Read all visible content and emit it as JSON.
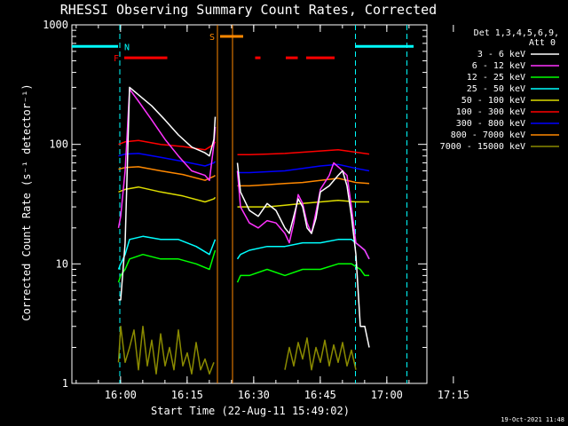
{
  "chart_data": {
    "type": "line",
    "title": "RHESSI Observing Summary Count Rates, Corrected",
    "xlabel": "Start Time (22-Aug-11 15:49:02)",
    "ylabel": "Corrected Count Rate (s⁻¹ detector⁻¹)",
    "yscale": "log",
    "ylim": [
      1,
      1000
    ],
    "xlim_minutes_from_start": [
      0,
      80
    ],
    "x_ticks": [
      {
        "label": "16:00",
        "minute": 10.97
      },
      {
        "label": "16:15",
        "minute": 25.97
      },
      {
        "label": "16:30",
        "minute": 40.97
      },
      {
        "label": "16:45",
        "minute": 55.97
      },
      {
        "label": "17:00",
        "minute": 70.97
      },
      {
        "label": "17:15",
        "minute": 85.97
      }
    ],
    "y_ticks": [
      {
        "label": "1",
        "value": 1
      },
      {
        "label": "10",
        "value": 10
      },
      {
        "label": "100",
        "value": 100
      },
      {
        "label": "1000",
        "value": 1000
      }
    ],
    "header": {
      "detectors": "Det 1,3,4,5,6,9,",
      "attenuator": "Att 0"
    },
    "series": [
      {
        "name": "3 - 6 keV",
        "color": "#ffffff",
        "points": [
          [
            10.5,
            5
          ],
          [
            11,
            5
          ],
          [
            12,
            15
          ],
          [
            13,
            300
          ],
          [
            15,
            260
          ],
          [
            18,
            210
          ],
          [
            21,
            160
          ],
          [
            24,
            120
          ],
          [
            27,
            95
          ],
          [
            30,
            85
          ],
          [
            31,
            80
          ],
          [
            32,
            110
          ],
          [
            32.3,
            170
          ],
          [
            36.7,
            null
          ],
          [
            37.3,
            70
          ],
          [
            38,
            40
          ],
          [
            40,
            28
          ],
          [
            42,
            25
          ],
          [
            44,
            32
          ],
          [
            46,
            28
          ],
          [
            48,
            20
          ],
          [
            49,
            18
          ],
          [
            50,
            25
          ],
          [
            51,
            35
          ],
          [
            52,
            30
          ],
          [
            53,
            20
          ],
          [
            54,
            18
          ],
          [
            55,
            24
          ],
          [
            56,
            40
          ],
          [
            58,
            45
          ],
          [
            60,
            55
          ],
          [
            61,
            60
          ],
          [
            62,
            45
          ],
          [
            63,
            25
          ],
          [
            64,
            12
          ],
          [
            65,
            3
          ],
          [
            66,
            3
          ],
          [
            67,
            2
          ]
        ]
      },
      {
        "name": "6 - 12 keV",
        "color": "#ff33ff",
        "points": [
          [
            10.5,
            20
          ],
          [
            11,
            25
          ],
          [
            12,
            60
          ],
          [
            13,
            290
          ],
          [
            15,
            230
          ],
          [
            18,
            160
          ],
          [
            21,
            110
          ],
          [
            24,
            80
          ],
          [
            27,
            60
          ],
          [
            30,
            55
          ],
          [
            31,
            50
          ],
          [
            32,
            100
          ],
          [
            32.3,
            140
          ],
          [
            36.7,
            null
          ],
          [
            37.3,
            60
          ],
          [
            38,
            30
          ],
          [
            40,
            22
          ],
          [
            42,
            20
          ],
          [
            44,
            23
          ],
          [
            46,
            22
          ],
          [
            48,
            18
          ],
          [
            49,
            15
          ],
          [
            50,
            22
          ],
          [
            51,
            38
          ],
          [
            52,
            32
          ],
          [
            53,
            22
          ],
          [
            54,
            18
          ],
          [
            55,
            27
          ],
          [
            56,
            42
          ],
          [
            58,
            55
          ],
          [
            59,
            70
          ],
          [
            60,
            65
          ],
          [
            61,
            60
          ],
          [
            62,
            55
          ],
          [
            63,
            30
          ],
          [
            64,
            15
          ],
          [
            65,
            14
          ],
          [
            66,
            13
          ],
          [
            67,
            11
          ]
        ]
      },
      {
        "name": "12 - 25 keV",
        "color": "#00ff00",
        "points": [
          [
            10.5,
            7
          ],
          [
            11,
            8
          ],
          [
            12,
            9
          ],
          [
            13,
            11
          ],
          [
            16,
            12
          ],
          [
            20,
            11
          ],
          [
            24,
            11
          ],
          [
            28,
            10
          ],
          [
            31,
            9
          ],
          [
            32,
            12
          ],
          [
            32.3,
            13
          ],
          [
            36.7,
            null
          ],
          [
            37.3,
            7
          ],
          [
            38,
            8
          ],
          [
            40,
            8
          ],
          [
            44,
            9
          ],
          [
            48,
            8
          ],
          [
            52,
            9
          ],
          [
            56,
            9
          ],
          [
            60,
            10
          ],
          [
            63,
            10
          ],
          [
            65,
            9
          ],
          [
            66,
            8
          ],
          [
            67,
            8
          ]
        ]
      },
      {
        "name": "25 - 50 keV",
        "color": "#00ffff",
        "points": [
          [
            10.5,
            9
          ],
          [
            11,
            10
          ],
          [
            12,
            12
          ],
          [
            13,
            16
          ],
          [
            16,
            17
          ],
          [
            20,
            16
          ],
          [
            24,
            16
          ],
          [
            28,
            14
          ],
          [
            31,
            12
          ],
          [
            32,
            15
          ],
          [
            32.3,
            16
          ],
          [
            36.7,
            null
          ],
          [
            37.3,
            11
          ],
          [
            38,
            12
          ],
          [
            40,
            13
          ],
          [
            44,
            14
          ],
          [
            48,
            14
          ],
          [
            52,
            15
          ],
          [
            56,
            15
          ],
          [
            60,
            16
          ],
          [
            63,
            16
          ],
          [
            65,
            14
          ],
          [
            66,
            13
          ],
          [
            67,
            11
          ]
        ]
      },
      {
        "name": "50 - 100 keV",
        "color": "#dddd00",
        "points": [
          [
            10.5,
            40
          ],
          [
            12,
            42
          ],
          [
            15,
            44
          ],
          [
            20,
            40
          ],
          [
            25,
            37
          ],
          [
            30,
            33
          ],
          [
            32,
            35
          ],
          [
            32.3,
            36
          ],
          [
            36.7,
            null
          ],
          [
            37.3,
            30
          ],
          [
            40,
            30
          ],
          [
            44,
            30
          ],
          [
            48,
            31
          ],
          [
            52,
            32
          ],
          [
            56,
            33
          ],
          [
            60,
            34
          ],
          [
            64,
            33
          ],
          [
            67,
            33
          ]
        ]
      },
      {
        "name": "100 - 300 keV",
        "color": "#ff0000",
        "points": [
          [
            10.5,
            100
          ],
          [
            12,
            105
          ],
          [
            15,
            108
          ],
          [
            20,
            100
          ],
          [
            25,
            96
          ],
          [
            30,
            90
          ],
          [
            32,
            100
          ],
          [
            32.3,
            105
          ],
          [
            36.7,
            null
          ],
          [
            37.3,
            82
          ],
          [
            40,
            82
          ],
          [
            44,
            83
          ],
          [
            48,
            84
          ],
          [
            52,
            86
          ],
          [
            56,
            88
          ],
          [
            60,
            90
          ],
          [
            64,
            86
          ],
          [
            67,
            83
          ]
        ]
      },
      {
        "name": "300 - 800 keV",
        "color": "#0000ff",
        "points": [
          [
            10.5,
            80
          ],
          [
            12,
            83
          ],
          [
            15,
            84
          ],
          [
            20,
            78
          ],
          [
            25,
            72
          ],
          [
            30,
            66
          ],
          [
            32,
            70
          ],
          [
            32.3,
            72
          ],
          [
            36.7,
            null
          ],
          [
            37.3,
            58
          ],
          [
            40,
            58
          ],
          [
            44,
            59
          ],
          [
            48,
            60
          ],
          [
            52,
            63
          ],
          [
            56,
            66
          ],
          [
            60,
            68
          ],
          [
            64,
            63
          ],
          [
            67,
            60
          ]
        ]
      },
      {
        "name": "800 - 7000 keV",
        "color": "#ff8800",
        "points": [
          [
            10.5,
            62
          ],
          [
            12,
            64
          ],
          [
            15,
            65
          ],
          [
            20,
            60
          ],
          [
            25,
            56
          ],
          [
            30,
            50
          ],
          [
            32,
            54
          ],
          [
            32.3,
            55
          ],
          [
            36.7,
            null
          ],
          [
            37.3,
            45
          ],
          [
            40,
            45
          ],
          [
            44,
            46
          ],
          [
            48,
            47
          ],
          [
            52,
            48
          ],
          [
            56,
            50
          ],
          [
            60,
            52
          ],
          [
            64,
            48
          ],
          [
            67,
            47
          ]
        ]
      },
      {
        "name": "7000 - 15000 keV",
        "color": "#8b8b00",
        "points": [
          [
            10.5,
            1.5
          ],
          [
            11,
            3
          ],
          [
            12,
            1.5
          ],
          [
            13,
            2
          ],
          [
            14,
            2.8
          ],
          [
            15,
            1.3
          ],
          [
            16,
            3
          ],
          [
            17,
            1.4
          ],
          [
            18,
            2.3
          ],
          [
            19,
            1.2
          ],
          [
            20,
            2.6
          ],
          [
            21,
            1.4
          ],
          [
            22,
            2.0
          ],
          [
            23,
            1.3
          ],
          [
            24,
            2.8
          ],
          [
            25,
            1.4
          ],
          [
            26,
            1.8
          ],
          [
            27,
            1.2
          ],
          [
            28,
            2.2
          ],
          [
            29,
            1.3
          ],
          [
            30,
            1.6
          ],
          [
            31,
            1.2
          ],
          [
            32,
            1.5
          ],
          [
            36.7,
            null
          ],
          [
            48,
            1.3
          ],
          [
            49,
            2.0
          ],
          [
            50,
            1.4
          ],
          [
            51,
            2.2
          ],
          [
            52,
            1.6
          ],
          [
            53,
            2.4
          ],
          [
            54,
            1.3
          ],
          [
            55,
            2.0
          ],
          [
            56,
            1.5
          ],
          [
            57,
            2.3
          ],
          [
            58,
            1.4
          ],
          [
            59,
            2.1
          ],
          [
            60,
            1.5
          ],
          [
            61,
            2.2
          ],
          [
            62,
            1.4
          ],
          [
            63,
            1.9
          ],
          [
            64,
            1.3
          ]
        ]
      }
    ],
    "annotations": {
      "saa_cyan": {
        "color": "#00ffff",
        "label": "N",
        "vlines": [
          10.8,
          63.9,
          75.5
        ],
        "bar_segments": [
          [
            -2,
            10.4
          ],
          [
            64,
            77
          ]
        ],
        "bar_value": 660
      },
      "saa_orange": {
        "color": "#ff8800",
        "label": "S",
        "vlines": [
          32.8,
          36.2
        ],
        "bar_segments": [
          [
            33.4,
            38.6
          ]
        ],
        "bar_value": 800
      },
      "flare_red": {
        "color": "#ff0000",
        "label": "F",
        "bar_segments": [
          [
            11.8,
            21.5
          ],
          [
            41.3,
            42.5
          ],
          [
            48.2,
            50.9
          ],
          [
            52.8,
            59.2
          ]
        ],
        "bar_value": 530
      }
    }
  },
  "footer_stamp": "19-Oct-2021 11:48"
}
